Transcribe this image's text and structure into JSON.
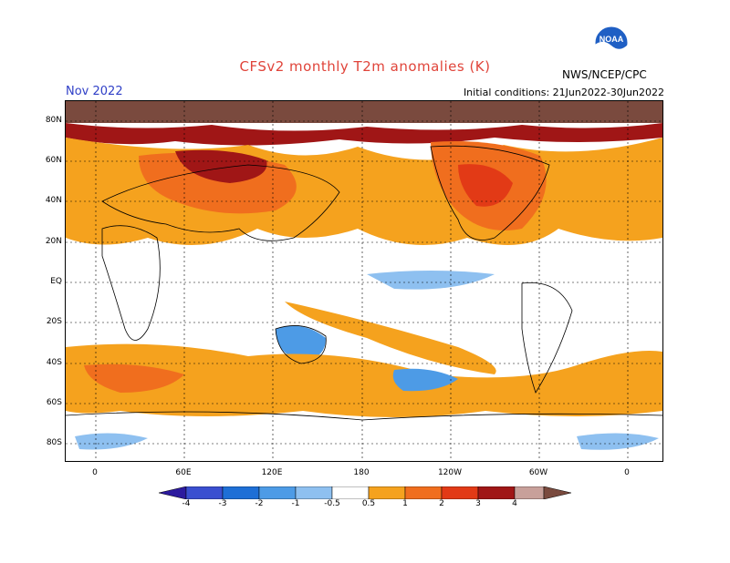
{
  "header": {
    "title": "CFSv2 monthly T2m anomalies (K)",
    "month": "Nov 2022",
    "initial_conditions": "Initial conditions: 21Jun2022-30Jun2022",
    "agency": "NWS/NCEP/CPC",
    "logo_text": "NOAA"
  },
  "map": {
    "lat_labels": [
      "80N",
      "60N",
      "40N",
      "20N",
      "EQ",
      "20S",
      "40S",
      "60S",
      "80S"
    ],
    "lon_labels": [
      "0",
      "60E",
      "120E",
      "180",
      "120W",
      "60W",
      "0"
    ]
  },
  "colorbar": {
    "labels": [
      "-4",
      "-3",
      "-2",
      "-1",
      "-0.5",
      "0.5",
      "1",
      "2",
      "3",
      "4"
    ],
    "colors": [
      "#2c1a9e",
      "#3a4fd0",
      "#1e6fd6",
      "#4d9be6",
      "#8ec0f0",
      "#ffffff",
      "#f5a21e",
      "#f06e1e",
      "#e23a16",
      "#a01616",
      "#c8a09a",
      "#7a4a3e"
    ]
  }
}
